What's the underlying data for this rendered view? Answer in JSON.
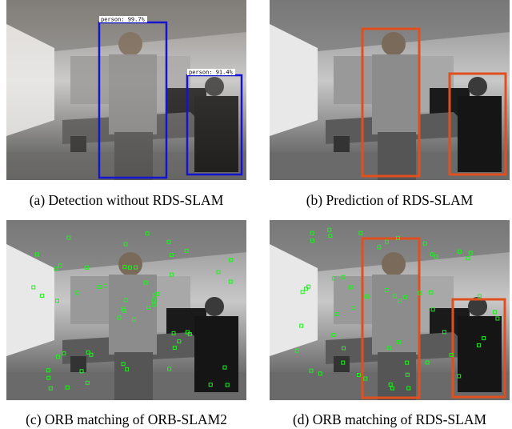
{
  "panels": [
    {
      "caption": "(a)  Detection without RDS-SLAM",
      "detections": [
        "person: 99.7%",
        "person: 91.4%"
      ]
    },
    {
      "caption": "(b)  Prediction of RDS-SLAM"
    },
    {
      "caption": "(c)  ORB matching of ORB-SLAM2"
    },
    {
      "caption": "(d)  ORB matching of RDS-SLAM"
    }
  ]
}
